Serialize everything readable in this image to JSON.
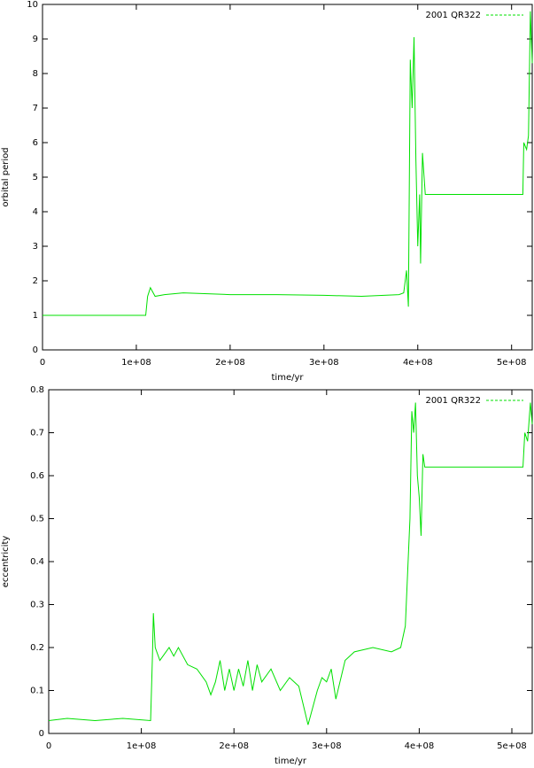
{
  "chart_data": [
    {
      "type": "line",
      "xlabel": "time/yr",
      "ylabel": "orbital period",
      "legend": "upper right",
      "xlim": [
        0,
        522000000.0
      ],
      "ylim": [
        0,
        10
      ],
      "xticks": [
        0,
        {
          "value": 100000000.0,
          "label": "1e+08"
        },
        {
          "value": 200000000.0,
          "label": "2e+08"
        },
        {
          "value": 300000000.0,
          "label": "3e+08"
        },
        {
          "value": 400000000.0,
          "label": "4e+08"
        },
        {
          "value": 500000000.0,
          "label": "5e+08"
        }
      ],
      "yticks": [
        0,
        1,
        2,
        3,
        4,
        5,
        6,
        7,
        8,
        9,
        10
      ],
      "x": [
        0,
        20000000.0,
        50000000.0,
        80000000.0,
        110000000.0,
        112000000.0,
        115000000.0,
        120000000.0,
        130000000.0,
        150000000.0,
        200000000.0,
        250000000.0,
        300000000.0,
        340000000.0,
        380000000.0,
        385000000.0,
        388000000.0,
        390000000.0,
        392000000.0,
        394000000.0,
        396000000.0,
        398000000.0,
        400000000.0,
        402000000.0,
        403000000.0,
        405000000.0,
        408000000.0,
        450000000.0,
        500000000.0,
        512000000.0,
        513000000.0,
        516000000.0,
        518000000.0,
        520000000.0,
        522000000.0
      ],
      "series": [
        {
          "name": "2001 QR322",
          "color": "#00e000",
          "values": [
            1.0,
            1.0,
            1.0,
            1.0,
            1.0,
            1.55,
            1.8,
            1.55,
            1.6,
            1.65,
            1.6,
            1.6,
            1.58,
            1.55,
            1.6,
            1.65,
            2.3,
            1.25,
            8.4,
            7.0,
            9.05,
            5.5,
            3.0,
            4.5,
            2.5,
            5.7,
            4.5,
            4.5,
            4.5,
            4.5,
            6.0,
            5.8,
            6.2,
            9.8,
            8.3
          ]
        }
      ]
    },
    {
      "type": "line",
      "xlabel": "time/yr",
      "ylabel": "eccentricity",
      "legend": "upper right",
      "xlim": [
        0,
        522000000.0
      ],
      "ylim": [
        0,
        0.8
      ],
      "xticks": [
        0,
        {
          "value": 100000000.0,
          "label": "1e+08"
        },
        {
          "value": 200000000.0,
          "label": "2e+08"
        },
        {
          "value": 300000000.0,
          "label": "3e+08"
        },
        {
          "value": 400000000.0,
          "label": "4e+08"
        },
        {
          "value": 500000000.0,
          "label": "5e+08"
        }
      ],
      "yticks": [
        0,
        0.1,
        0.2,
        0.3,
        0.4,
        0.5,
        0.6,
        0.7,
        0.8
      ],
      "x": [
        0,
        20000000.0,
        50000000.0,
        80000000.0,
        110000000.0,
        112000000.0,
        113000000.0,
        115000000.0,
        120000000.0,
        130000000.0,
        135000000.0,
        140000000.0,
        150000000.0,
        160000000.0,
        170000000.0,
        175000000.0,
        180000000.0,
        185000000.0,
        190000000.0,
        195000000.0,
        200000000.0,
        205000000.0,
        210000000.0,
        215000000.0,
        220000000.0,
        225000000.0,
        230000000.0,
        240000000.0,
        250000000.0,
        260000000.0,
        270000000.0,
        280000000.0,
        285000000.0,
        290000000.0,
        295000000.0,
        300000000.0,
        305000000.0,
        310000000.0,
        320000000.0,
        330000000.0,
        350000000.0,
        370000000.0,
        380000000.0,
        385000000.0,
        390000000.0,
        392000000.0,
        394000000.0,
        396000000.0,
        398000000.0,
        400000000.0,
        402000000.0,
        404000000.0,
        406000000.0,
        450000000.0,
        500000000.0,
        512000000.0,
        514000000.0,
        517000000.0,
        520000000.0,
        522000000.0
      ],
      "series": [
        {
          "name": "2001 QR322",
          "color": "#00e000",
          "values": [
            0.03,
            0.035,
            0.03,
            0.035,
            0.03,
            0.18,
            0.28,
            0.2,
            0.17,
            0.2,
            0.18,
            0.2,
            0.16,
            0.15,
            0.12,
            0.09,
            0.12,
            0.17,
            0.1,
            0.15,
            0.1,
            0.15,
            0.11,
            0.17,
            0.1,
            0.16,
            0.12,
            0.15,
            0.1,
            0.13,
            0.11,
            0.02,
            0.06,
            0.1,
            0.13,
            0.12,
            0.15,
            0.08,
            0.17,
            0.19,
            0.2,
            0.19,
            0.2,
            0.25,
            0.5,
            0.75,
            0.7,
            0.77,
            0.6,
            0.55,
            0.46,
            0.65,
            0.62,
            0.62,
            0.62,
            0.62,
            0.7,
            0.68,
            0.77,
            0.72
          ]
        }
      ]
    }
  ]
}
